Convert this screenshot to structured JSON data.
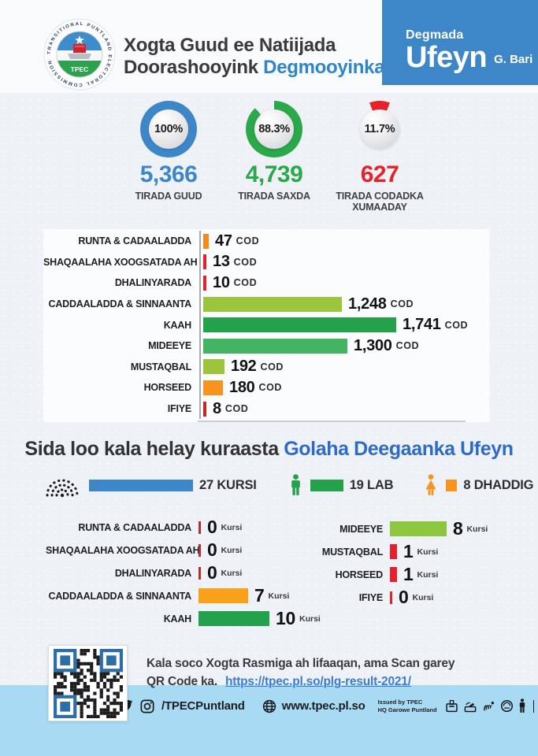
{
  "header": {
    "logo": {
      "ring_text": "TRANSITIONAL PUNTLAND ELECTORAL COMMISSION",
      "abbr": "TPEC"
    },
    "title_line1": "Xogta Guud ee Natiijada",
    "title_line2": "Doorashooyink",
    "title_accent": "Degmooyinka",
    "district": {
      "label": "Degmada",
      "name": "Ufeyn",
      "region": "G. Bari",
      "bg_color": "#3d87c9"
    }
  },
  "colors": {
    "accent_blue": "#3d87c9",
    "accent_green": "#2aa84a",
    "accent_red": "#e62329",
    "title_accent_blue": "#2e86c8",
    "section_accent_blue": "#2e6bc4",
    "footer_strip_blue": "#a9daf3"
  },
  "chart_data": [
    {
      "type": "pie",
      "subtype": "donut-summary",
      "items": [
        {
          "pct_label": "100%",
          "fraction": 100,
          "value": 5366,
          "value_display": "5,366",
          "label": "TIRADA GUUD",
          "color": "#3d87c9"
        },
        {
          "pct_label": "88.3%",
          "fraction": 88.3,
          "value": 4739,
          "value_display": "4,739",
          "label": "TIRADA SAXDA",
          "color": "#2aa84a"
        },
        {
          "pct_label": "11.7%",
          "fraction": 11.7,
          "value": 627,
          "value_display": "627",
          "label": "TIRADA CODADKA XUMAADAY",
          "color": "#e62329"
        }
      ]
    },
    {
      "type": "bar",
      "orientation": "horizontal",
      "unit": "COD",
      "xlim": [
        0,
        1741
      ],
      "items": [
        {
          "label": "RUNTA & CADAALADDA",
          "value": 47,
          "display": "47",
          "color": "#f28b1f"
        },
        {
          "label": "SHAQAALAHA XOOGSATADA AH",
          "value": 13,
          "display": "13",
          "color": "#e62129"
        },
        {
          "label": "DHALINYARADA",
          "value": 10,
          "display": "10",
          "color": "#e62129"
        },
        {
          "label": "CADDAALADDA & SINNAANTA",
          "value": 1248,
          "display": "1,248",
          "color": "#9cc43c"
        },
        {
          "label": "KAAH",
          "value": 1741,
          "display": "1,741",
          "color": "#23a24b"
        },
        {
          "label": "MIDEEYE",
          "value": 1300,
          "display": "1,300",
          "color": "#44b464"
        },
        {
          "label": "MUSTAQBAL",
          "value": 192,
          "display": "192",
          "color": "#9cc43c"
        },
        {
          "label": "HORSEED",
          "value": 180,
          "display": "180",
          "color": "#f7941d"
        },
        {
          "label": "IFIYE",
          "value": 8,
          "display": "8",
          "color": "#cc2424"
        }
      ]
    },
    {
      "type": "bar",
      "orientation": "horizontal",
      "unit": "Kursi",
      "title": "Sida loo kala helay kuraasta Golaha Deegaanka Ufeyn",
      "total_seats": 27,
      "items": [
        {
          "label": "RUNTA & CADAALADDA",
          "value": 0,
          "display": "0",
          "color": "#b2342c"
        },
        {
          "label": "SHAQAALAHA XOOGSATADA AH",
          "value": 0,
          "display": "0",
          "color": "#b2342c"
        },
        {
          "label": "DHALINYARADA",
          "value": 0,
          "display": "0",
          "color": "#b2342c"
        },
        {
          "label": "CADDAALADDA & SINNAANTA",
          "value": 7,
          "display": "7",
          "color": "#f9a11b"
        },
        {
          "label": "KAAH",
          "value": 10,
          "display": "10",
          "color": "#23a24b"
        },
        {
          "label": "MIDEEYE",
          "value": 8,
          "display": "8",
          "color": "#8cc63f"
        },
        {
          "label": "MUSTAQBAL",
          "value": 1,
          "display": "1",
          "color": "#e62129"
        },
        {
          "label": "HORSEED",
          "value": 1,
          "display": "1",
          "color": "#e62129"
        },
        {
          "label": "IFIYE",
          "value": 0,
          "display": "0",
          "color": "#e62129"
        }
      ]
    }
  ],
  "section2": {
    "title_main": "Sida loo kala helay kuraasta",
    "title_accent": "Golaha Deegaanka Ufeyn",
    "legend": [
      {
        "icon": "parliament-icon",
        "icon_color": "#1d1d1f",
        "label": "27 KURSI",
        "color": "#3d87c9"
      },
      {
        "icon": "male-icon",
        "icon_color": "#23a24b",
        "label": "19 LAB",
        "color": "#23a24b"
      },
      {
        "icon": "female-icon",
        "icon_color": "#f7941d",
        "label": "8 DHADDIG",
        "color": "#f7941d"
      }
    ]
  },
  "footer": {
    "note_line1": "Kala soco Xogta Rasmiga ah lifaaqan, ama Scan garey",
    "note_line2": "QR Code ka.",
    "link": "https://tpec.pl.so/plg-result-2021/",
    "social_handle": "/TPECPuntland",
    "website": "www.tpec.pl.so",
    "issued_line1": "Issued by TPEC",
    "issued_line2": "HQ Garowe Puntland"
  }
}
